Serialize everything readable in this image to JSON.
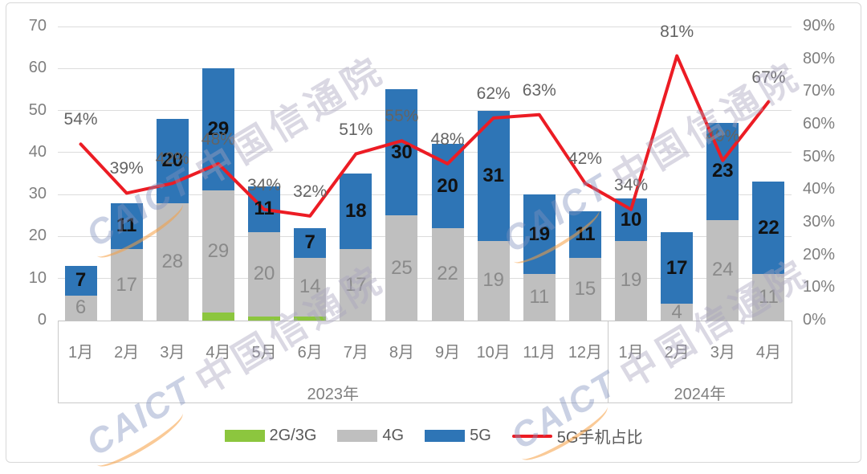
{
  "watermark": {
    "prefix": "CAICT",
    "text": "中国信通院"
  },
  "chart_data": {
    "type": "combo (stacked bar + line)",
    "title": "",
    "categories": [
      "1月",
      "2月",
      "3月",
      "4月",
      "5月",
      "6月",
      "7月",
      "8月",
      "9月",
      "10月",
      "11月",
      "12月",
      "1月",
      "2月",
      "3月",
      "4月"
    ],
    "year_groups": [
      {
        "label": "2023年",
        "span": 12
      },
      {
        "label": "2024年",
        "span": 4
      }
    ],
    "series": [
      {
        "name": "2G/3G",
        "type": "bar",
        "color": "#8cc63e",
        "show_labels": false,
        "values": [
          0,
          0,
          0,
          2,
          1,
          1,
          0,
          0,
          0,
          0,
          0,
          0,
          0,
          0,
          0,
          0
        ]
      },
      {
        "name": "4G",
        "type": "bar",
        "color": "#bfbfbf",
        "show_labels": true,
        "values": [
          6,
          17,
          28,
          29,
          20,
          14,
          17,
          25,
          22,
          19,
          11,
          15,
          19,
          4,
          24,
          11
        ]
      },
      {
        "name": "5G",
        "type": "bar",
        "color": "#2e75b6",
        "show_labels": true,
        "values": [
          7,
          11,
          20,
          29,
          11,
          7,
          18,
          30,
          20,
          31,
          19,
          11,
          10,
          17,
          23,
          22
        ]
      },
      {
        "name": "5G手机占比",
        "type": "line",
        "axis": "right",
        "color": "#ec1c24",
        "show_labels": true,
        "label_suffix": "%",
        "values": [
          54,
          39,
          42,
          48,
          34,
          32,
          51,
          55,
          48,
          62,
          63,
          42,
          34,
          81,
          49,
          67
        ]
      }
    ],
    "left_axis": {
      "min": 0,
      "max": 70,
      "step": 10
    },
    "right_axis": {
      "min": 0,
      "max": 90,
      "step": 10,
      "suffix": "%"
    },
    "grid": true,
    "legend_position": "bottom"
  }
}
